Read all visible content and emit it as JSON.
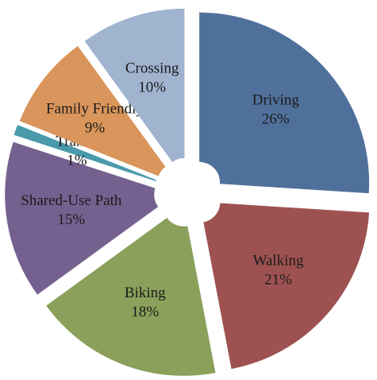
{
  "chart_data": {
    "type": "pie",
    "categories": [
      "Driving",
      "Walking",
      "Biking",
      "Shared-Use Path",
      "Transit",
      "Family Friendly",
      "Crossing"
    ],
    "values": [
      26,
      21,
      18,
      15,
      1,
      9,
      10
    ],
    "value_labels": [
      "26%",
      "21%",
      "18%",
      "15%",
      "1%",
      "9%",
      "10%"
    ],
    "colors": [
      "#50709c",
      "#9d5251",
      "#8aa05b",
      "#75618f",
      "#4a9aab",
      "#d9955b",
      "#a0b4d0"
    ]
  }
}
